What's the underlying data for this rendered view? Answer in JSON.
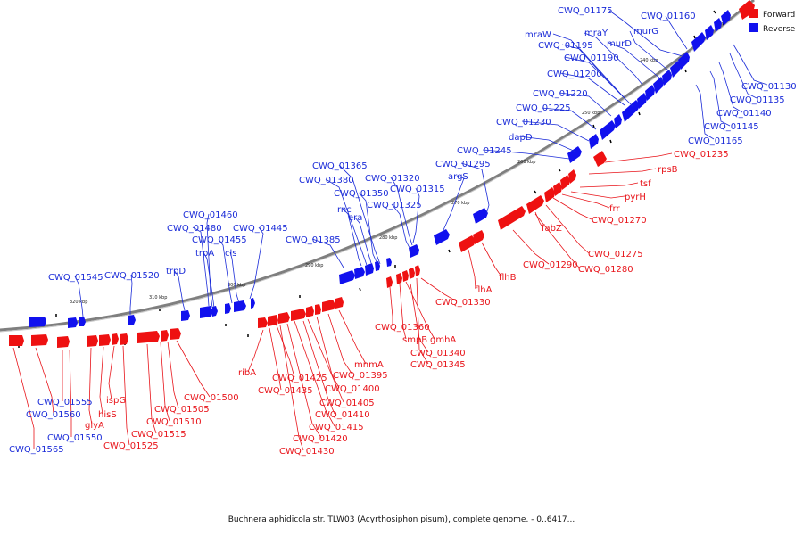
{
  "legend": {
    "forward_label": "Forward",
    "reverse_label": "Reverse",
    "forward_color": "#ee1111",
    "reverse_color": "#1111ee"
  },
  "caption": "Buchnera aphidicola str. TLW03 (Acyrthosiphon pisum), complete genome. - 0..6417...",
  "backbone_ticks": [
    "240 kbp",
    "250 kbp",
    "260 kbp",
    "270 kbp",
    "280 kbp",
    "290 kbp",
    "300 kbp",
    "310 kbp",
    "320 kbp"
  ],
  "reverse_labels": [
    "CWQ_01175",
    "CWQ_01160",
    "mraW",
    "mraY",
    "murG",
    "CWQ_01195",
    "murD",
    "CWQ_01190",
    "CWQ_01200",
    "CWQ_01130",
    "CWQ_01220",
    "CWQ_01135",
    "CWQ_01225",
    "CWQ_01140",
    "CWQ_01230",
    "CWQ_01145",
    "dapD",
    "CWQ_01165",
    "CWQ_01245",
    "CWQ_01365",
    "CWQ_01295",
    "CWQ_01380",
    "CWQ_01320",
    "argS",
    "CWQ_01315",
    "CWQ_01350",
    "rnc",
    "CWQ_01325",
    "era",
    "CWQ_01460",
    "CWQ_01480",
    "CWQ_01445",
    "CWQ_01455",
    "trpA",
    "cls",
    "CWQ_01385",
    "trpD",
    "CWQ_01545",
    "CWQ_01520"
  ],
  "forward_labels": [
    "CWQ_01235",
    "rpsB",
    "tsf",
    "pyrH",
    "frr",
    "CWQ_01270",
    "fabZ",
    "CWQ_01275",
    "CWQ_01290",
    "CWQ_01280",
    "flhB",
    "flhA",
    "CWQ_01330",
    "CWQ_01360",
    "smpB",
    "gmhA",
    "CWQ_01340",
    "CWQ_01345",
    "mnmA",
    "ribA",
    "CWQ_01395",
    "CWQ_01425",
    "CWQ_01400",
    "CWQ_01435",
    "CWQ_01405",
    "CWQ_01500",
    "CWQ_01410",
    "CWQ_01415",
    "CWQ_01420",
    "CWQ_01430",
    "CWQ_01505",
    "CWQ_01510",
    "CWQ_01515",
    "CWQ_01525",
    "ispG",
    "hisS",
    "glyA",
    "CWQ_01555",
    "CWQ_01560",
    "CWQ_01550",
    "CWQ_01565"
  ]
}
